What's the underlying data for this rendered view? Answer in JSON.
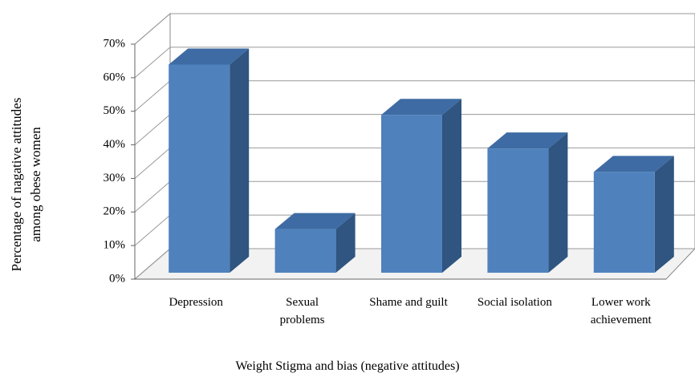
{
  "chart_data": {
    "type": "bar3d",
    "y_label": [
      "Percentage of nagative attitudes",
      "among obese women"
    ],
    "x_label": "Weight  Stigma and bias (negative attitudes)",
    "categories": [
      "Depression",
      "Sexual problems",
      "Shame and guilt",
      "Social isolation",
      "Lower work achievement"
    ],
    "values": [
      62,
      13,
      47,
      37,
      30
    ],
    "color": "#4f81bd",
    "ylim": [
      0,
      70
    ],
    "yticks": [
      {
        "value": 0,
        "label": "0%"
      },
      {
        "value": 10,
        "label": "10%"
      },
      {
        "value": 20,
        "label": "20%"
      },
      {
        "value": 30,
        "label": "30%"
      },
      {
        "value": 40,
        "label": "40%"
      },
      {
        "value": 50,
        "label": "50%"
      },
      {
        "value": 60,
        "label": "60%"
      },
      {
        "value": 70,
        "label": "70%"
      }
    ],
    "grid": true
  }
}
